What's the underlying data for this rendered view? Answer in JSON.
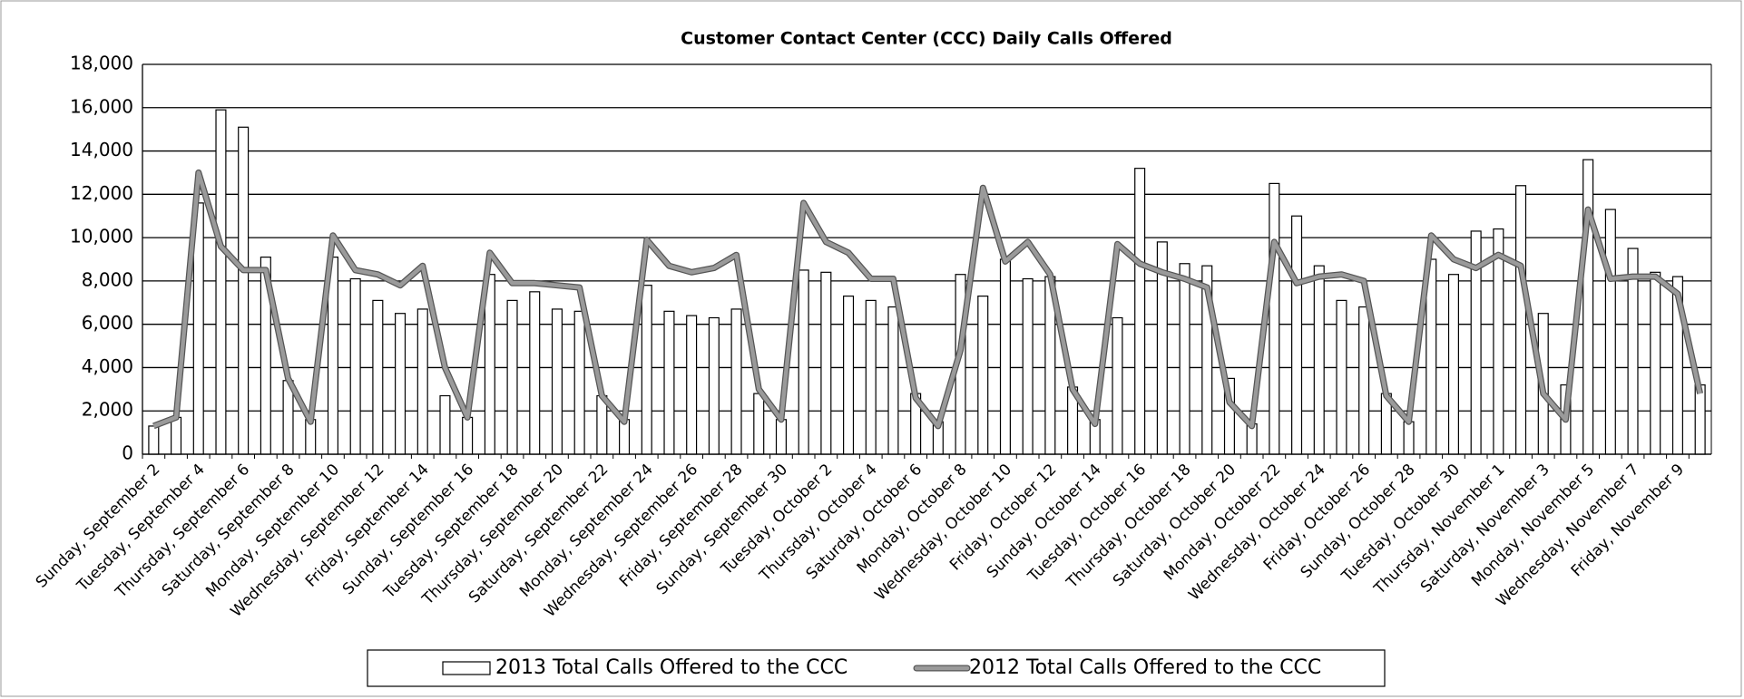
{
  "chart_data": {
    "type": "bar_line",
    "title": "Customer Contact Center (CCC) Daily Calls Offered",
    "categories": [
      "Sunday, September 2",
      null,
      "Tuesday, September 4",
      null,
      "Thursday, September 6",
      null,
      "Saturday, September 8",
      null,
      "Monday, September 10",
      null,
      "Wednesday, September 12",
      null,
      "Friday, September 14",
      null,
      "Sunday, September 16",
      null,
      "Tuesday, September 18",
      null,
      "Thursday, September 20",
      null,
      "Saturday, September 22",
      null,
      "Monday, September 24",
      null,
      "Wednesday, September 26",
      null,
      "Friday, September 28",
      null,
      "Sunday, September 30",
      null,
      "Tuesday, October 2",
      null,
      "Thursday, October 4",
      null,
      "Saturday, October 6",
      null,
      "Monday, October 8",
      null,
      "Wednesday, October 10",
      null,
      "Friday, October 12",
      null,
      "Sunday, October 14",
      null,
      "Tuesday, October 16",
      null,
      "Thursday, October 18",
      null,
      "Saturday, October 20",
      null,
      "Monday, October 22",
      null,
      "Wednesday, October 24",
      null,
      "Friday, October 26",
      null,
      "Sunday, October 28",
      null,
      "Tuesday, October 30",
      null,
      "Thursday, November 1",
      null,
      "Saturday, November 3",
      null,
      "Monday, November 5",
      null,
      "Wednesday, November 7",
      null,
      "Friday, November 9",
      null
    ],
    "series": [
      {
        "name": "2013 Total Calls Offered to the CCC",
        "type": "bar",
        "color": "#ffffff",
        "values": [
          1300,
          1700,
          11600,
          15900,
          15100,
          9100,
          3400,
          1600,
          9100,
          8100,
          7100,
          6500,
          6700,
          2700,
          1700,
          8300,
          7100,
          7500,
          6700,
          6600,
          2700,
          1600,
          7800,
          6600,
          6400,
          6300,
          6700,
          2800,
          1600,
          8500,
          8400,
          7300,
          7100,
          6800,
          2800,
          1500,
          8300,
          7300,
          9000,
          8100,
          8200,
          3100,
          1600,
          6300,
          13200,
          9800,
          8800,
          8700,
          3500,
          1400,
          12500,
          11000,
          8700,
          7100,
          6800,
          2800,
          1500,
          9000,
          8300,
          10300,
          10400,
          12400,
          6500,
          3200,
          13600,
          11300,
          9500,
          8400,
          8200,
          3200
        ]
      },
      {
        "name": "2012 Total Calls Offered to the CCC",
        "type": "line",
        "color": "#9a9a9a",
        "values": [
          1300,
          1700,
          13000,
          9600,
          8500,
          8500,
          3500,
          1500,
          10100,
          8500,
          8300,
          7800,
          8700,
          4000,
          1700,
          9300,
          7900,
          7900,
          7800,
          7700,
          2700,
          1500,
          9900,
          8700,
          8400,
          8600,
          9200,
          3000,
          1600,
          11600,
          9800,
          9300,
          8100,
          8100,
          2600,
          1300,
          4800,
          12300,
          8900,
          9800,
          8300,
          3000,
          1400,
          9700,
          8800,
          8400,
          8100,
          7700,
          2400,
          1300,
          9800,
          7900,
          8200,
          8300,
          8000,
          2700,
          1500,
          10100,
          9000,
          8600,
          9200,
          8700,
          2800,
          1600,
          11300,
          8100,
          8200,
          8200,
          7400,
          2800
        ]
      }
    ],
    "ylim": [
      0,
      18000
    ],
    "yticks": [
      0,
      {
        "value": 2000,
        "label": "2,000"
      },
      {
        "value": 4000,
        "label": "4,000"
      },
      {
        "value": 6000,
        "label": "6,000"
      },
      {
        "value": 8000,
        "label": "8,000"
      },
      {
        "value": 10000,
        "label": "10,000"
      },
      {
        "value": 12000,
        "label": "12,000"
      },
      {
        "value": 14000,
        "label": "14,000"
      },
      {
        "value": 16000,
        "label": "16,000"
      },
      {
        "value": 18000,
        "label": "18,000"
      }
    ],
    "grid": true,
    "legend": "bottom"
  }
}
